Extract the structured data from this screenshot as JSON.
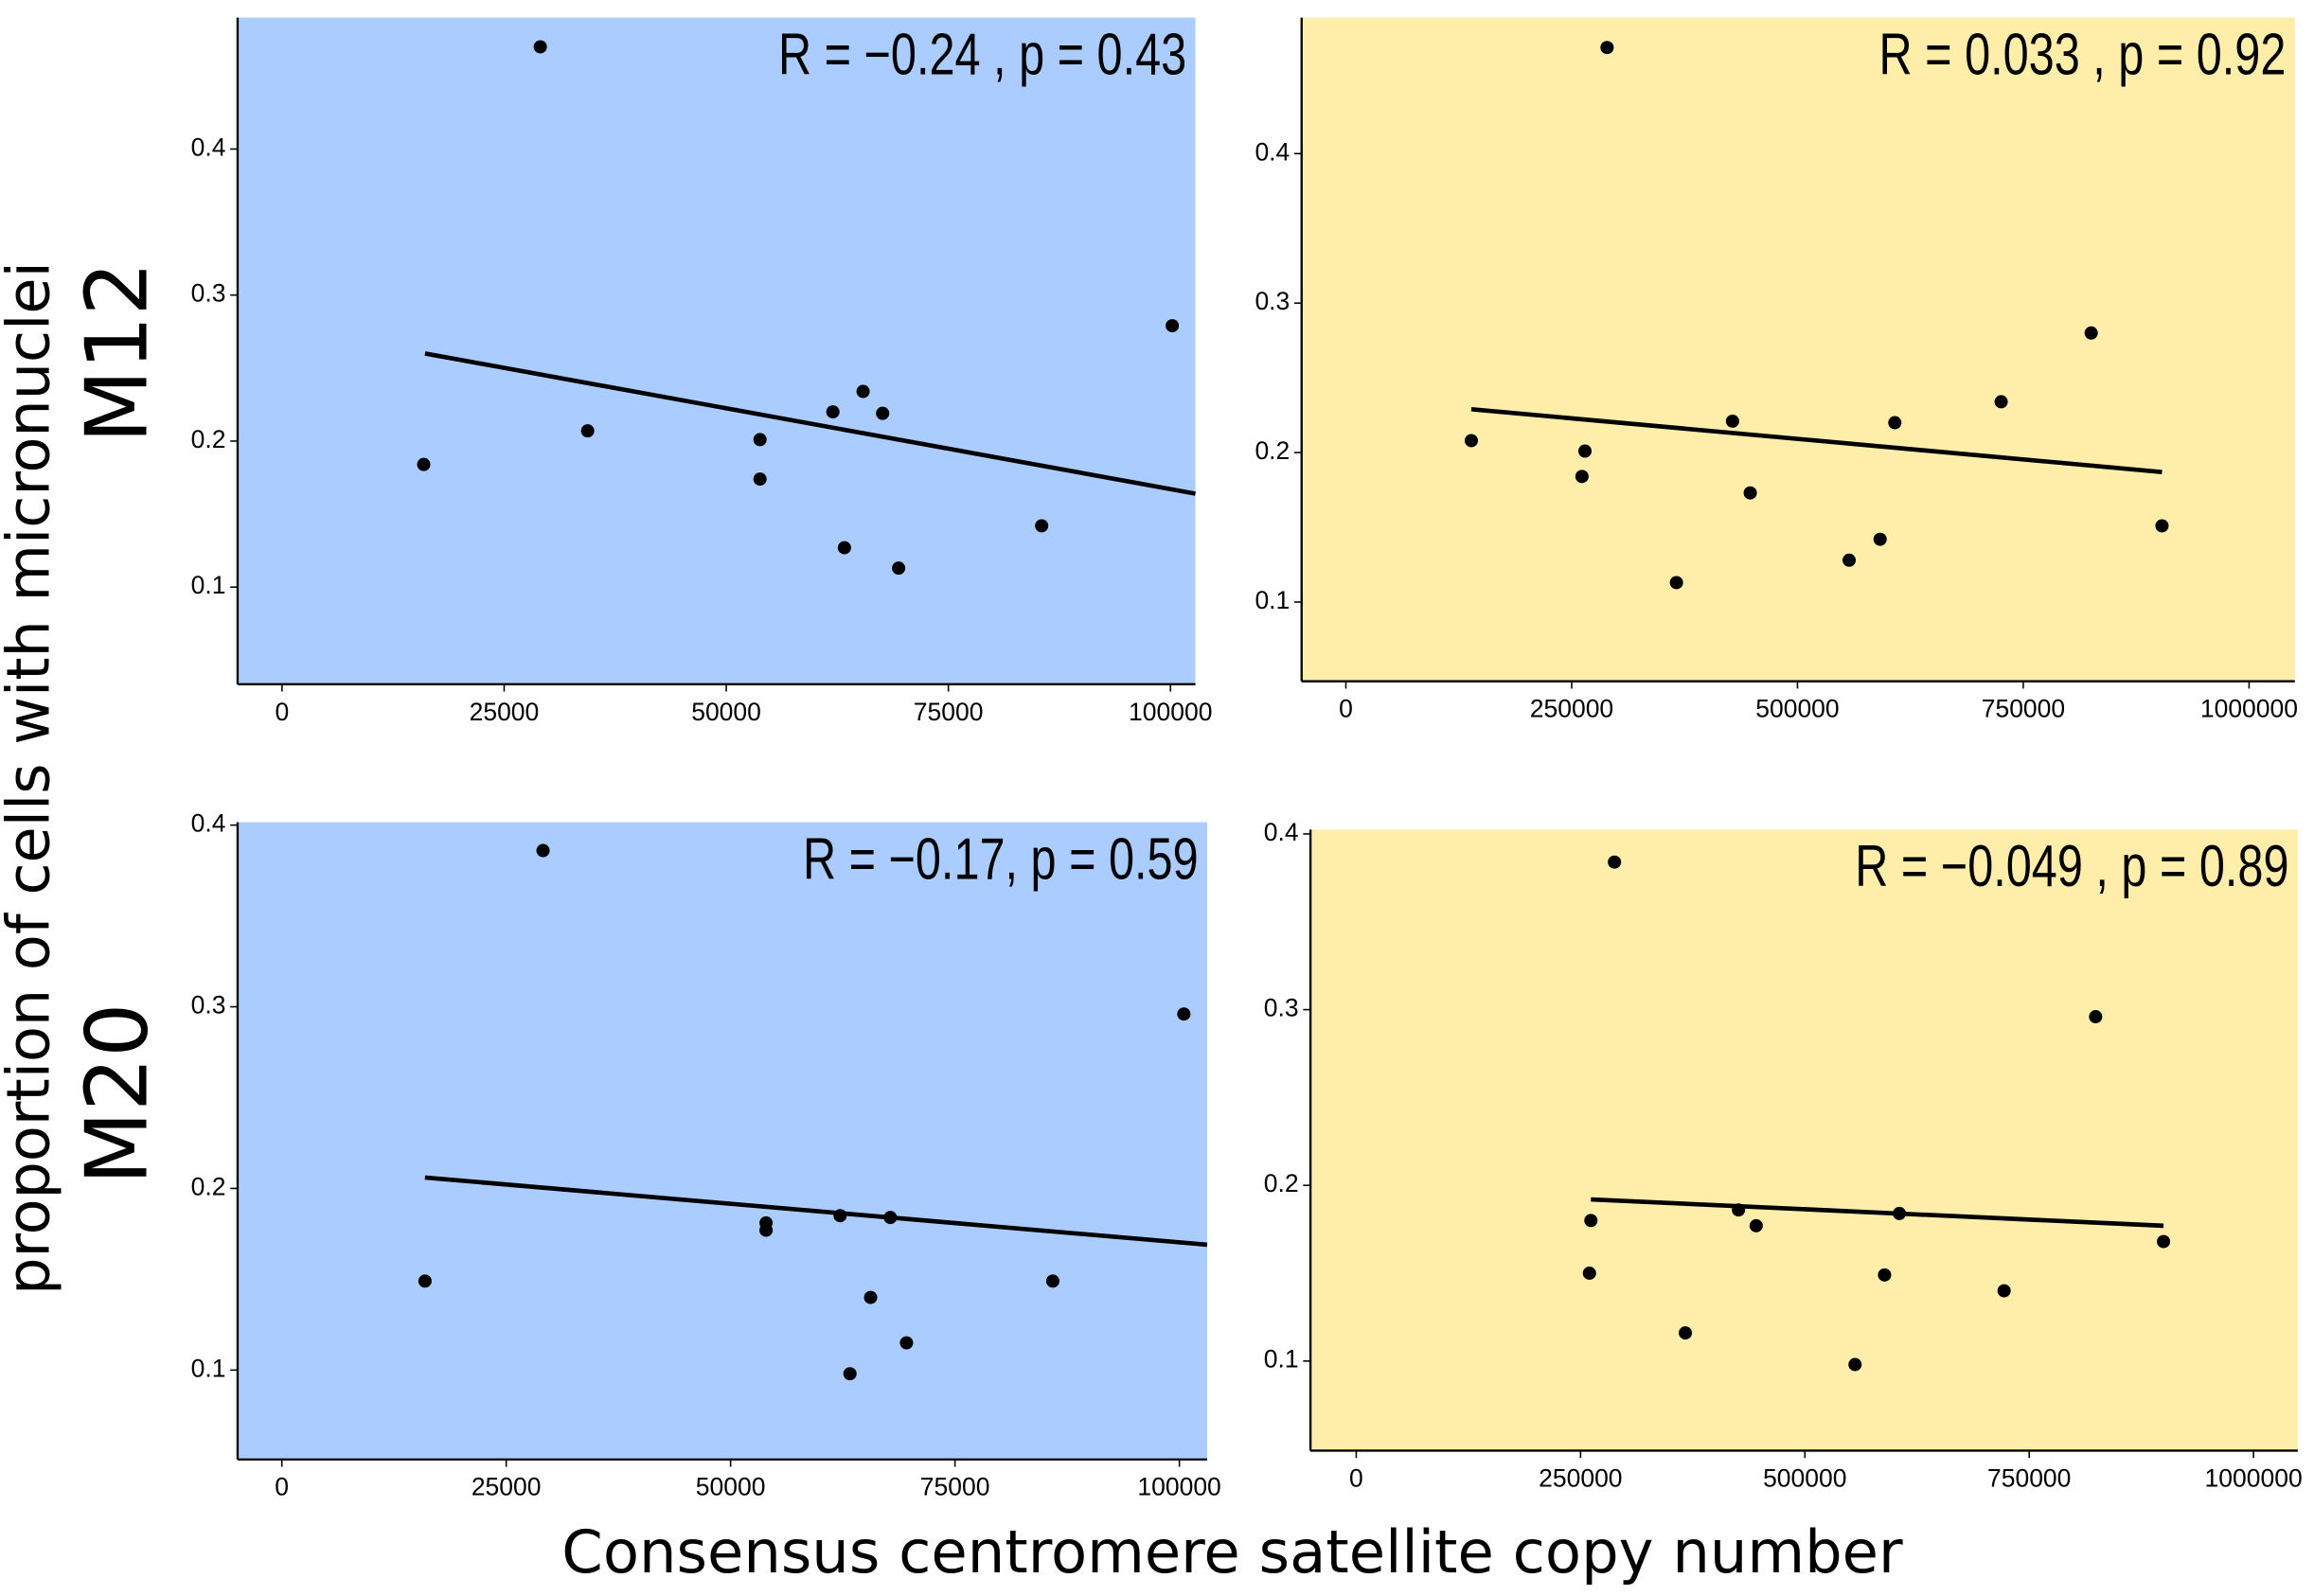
{
  "y_label": "proportion of cells with micronuclei",
  "x_label": "Consensus centromere satellite copy number",
  "row_labels": [
    "M12",
    "M20"
  ],
  "chart_data": [
    {
      "type": "scatter",
      "annotation": "R = −0.24 , p = 0.43",
      "background": "#aaccff",
      "color": "#000000",
      "x": [
        29070,
        15950,
        34400,
        53800,
        53800,
        62000,
        65400,
        67600,
        63300,
        69400,
        85500,
        100200
      ],
      "values": [
        0.47,
        0.184,
        0.207,
        0.201,
        0.174,
        0.22,
        0.234,
        0.219,
        0.127,
        0.113,
        0.142,
        0.279
      ],
      "fit": {
        "x": [
          16100,
          102800
        ],
        "y": [
          0.26,
          0.164
        ]
      },
      "xlim": [
        -5000,
        102800
      ],
      "ylim": [
        0.0335,
        0.49
      ],
      "xticks": [
        0,
        25000,
        50000,
        75000,
        100000
      ],
      "yticks": [
        0.1,
        0.2,
        0.3,
        0.4
      ]
    },
    {
      "type": "scatter",
      "annotation": "R = 0.033 , p = 0.92",
      "background": "#ffeeaa",
      "color": "#000000",
      "x": [
        289200,
        138900,
        264700,
        261400,
        366000,
        428100,
        447700,
        557200,
        591500,
        607800,
        725500,
        825200,
        903600
      ],
      "values": [
        0.471,
        0.208,
        0.201,
        0.184,
        0.113,
        0.221,
        0.173,
        0.128,
        0.142,
        0.22,
        0.234,
        0.28,
        0.151
      ],
      "fit": {
        "x": [
          138900,
          903600
        ],
        "y": [
          0.229,
          0.187
        ]
      },
      "xlim": [
        -49000,
        1050650
      ],
      "ylim": [
        0.047,
        0.491
      ],
      "xticks": [
        0,
        250000,
        500000,
        750000,
        1000000
      ],
      "yticks": [
        0.1,
        0.2,
        0.3,
        0.4
      ]
    },
    {
      "type": "scatter",
      "annotation": "R = −0.17, p = 0.59",
      "background": "#aaccff",
      "color": "#000000",
      "x": [
        29100,
        15950,
        53950,
        53950,
        62200,
        67800,
        65600,
        63300,
        69600,
        85900,
        100500
      ],
      "values": [
        0.386,
        0.149,
        0.181,
        0.177,
        0.185,
        0.184,
        0.14,
        0.098,
        0.115,
        0.149,
        0.296
      ],
      "fit": {
        "x": [
          15950,
          103100
        ],
        "y": [
          0.206,
          0.169
        ]
      },
      "xlim": [
        -4930,
        103100
      ],
      "ylim": [
        0.0508,
        0.4016
      ],
      "xticks": [
        0,
        25000,
        50000,
        75000,
        100000
      ],
      "yticks": [
        0.1,
        0.2,
        0.3,
        0.4
      ]
    },
    {
      "type": "scatter",
      "annotation": "R = −0.049 , p = 0.89",
      "background": "#ffeeaa",
      "color": "#000000",
      "x": [
        287800,
        261500,
        259900,
        366800,
        426000,
        445700,
        555900,
        588800,
        605300,
        722000,
        824000,
        899700
      ],
      "values": [
        0.384,
        0.18,
        0.15,
        0.116,
        0.186,
        0.177,
        0.098,
        0.149,
        0.184,
        0.14,
        0.296,
        0.168
      ],
      "fit": {
        "x": [
          261500,
          899700
        ],
        "y": [
          0.192,
          0.177
        ]
      },
      "xlim": [
        -51000,
        1049300
      ],
      "ylim": [
        0.049,
        0.4025
      ],
      "xticks": [
        0,
        250000,
        500000,
        750000,
        1000000
      ],
      "yticks": [
        0.1,
        0.2,
        0.3,
        0.4
      ]
    }
  ]
}
